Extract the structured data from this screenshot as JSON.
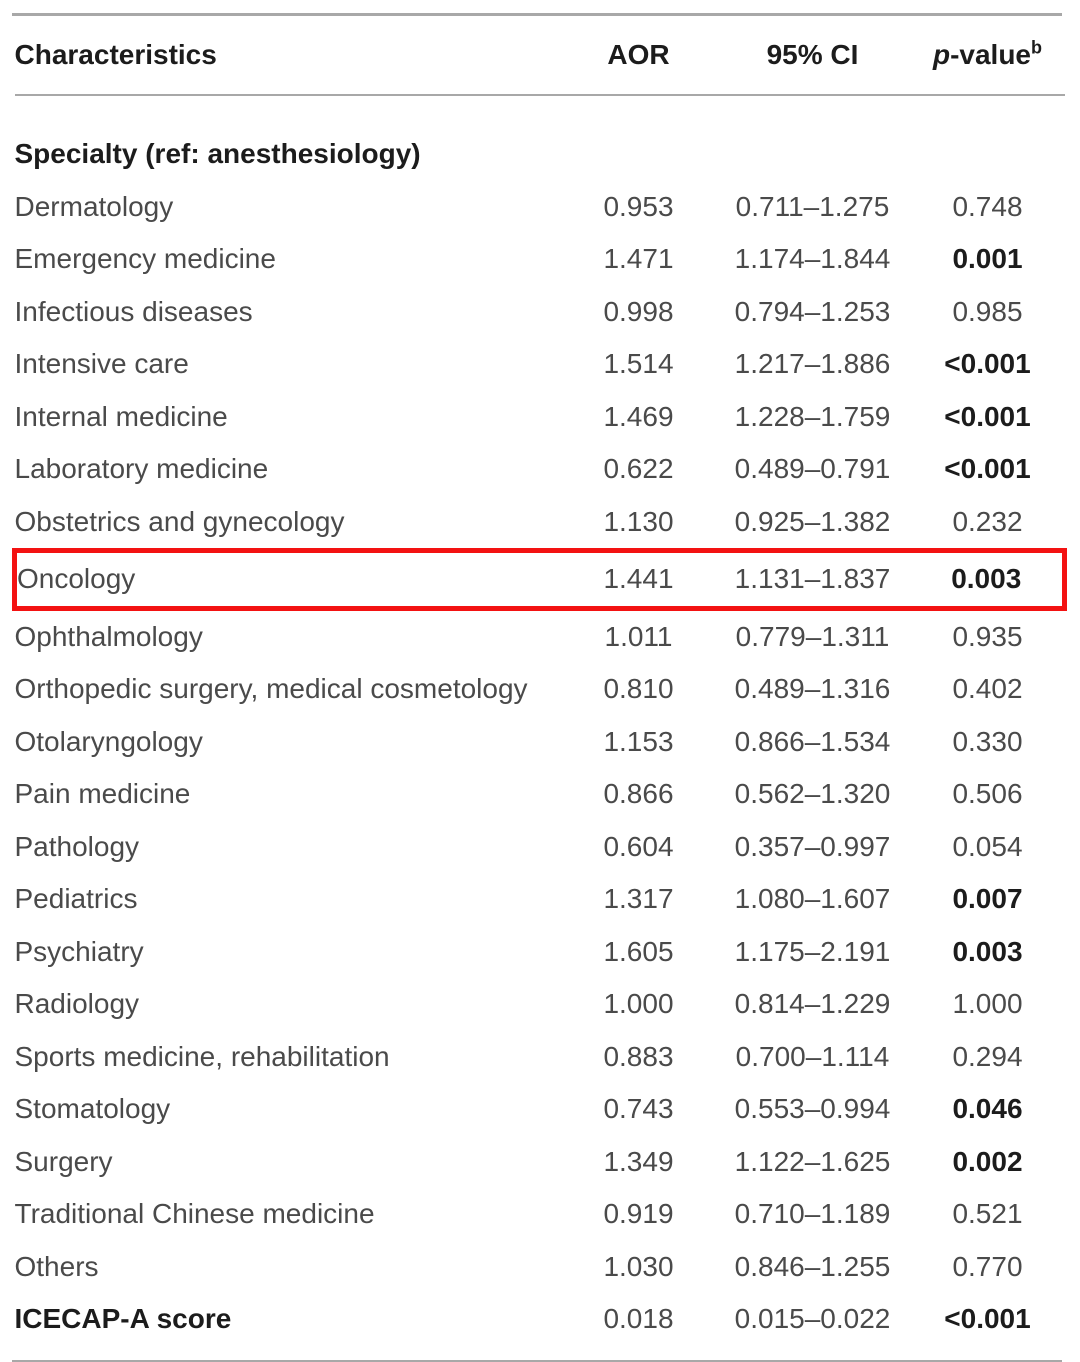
{
  "colors": {
    "background": "#ffffff",
    "text_regular": "#4a4a4a",
    "text_bold": "#1c1c1c",
    "rule": "#a8a8a8",
    "highlight": "#f31212"
  },
  "header": {
    "characteristics": "Characteristics",
    "aor": "AOR",
    "ci": "95% CI",
    "p_italic": "p",
    "p_rest": "-value",
    "p_sup": "b"
  },
  "table": {
    "section_header": "Specialty (ref: anesthesiology)",
    "highlighted_row": "Oncology",
    "rows": [
      {
        "label": "Dermatology",
        "aor": "0.953",
        "ci": "0.711–1.275",
        "p": "0.748",
        "p_bold": false,
        "bold_label": false,
        "highlighted": false
      },
      {
        "label": "Emergency medicine",
        "aor": "1.471",
        "ci": "1.174–1.844",
        "p": "0.001",
        "p_bold": true,
        "bold_label": false,
        "highlighted": false
      },
      {
        "label": "Infectious diseases",
        "aor": "0.998",
        "ci": "0.794–1.253",
        "p": "0.985",
        "p_bold": false,
        "bold_label": false,
        "highlighted": false
      },
      {
        "label": "Intensive care",
        "aor": "1.514",
        "ci": "1.217–1.886",
        "p": "<0.001",
        "p_bold": true,
        "bold_label": false,
        "highlighted": false
      },
      {
        "label": "Internal medicine",
        "aor": "1.469",
        "ci": "1.228–1.759",
        "p": "<0.001",
        "p_bold": true,
        "bold_label": false,
        "highlighted": false
      },
      {
        "label": "Laboratory medicine",
        "aor": "0.622",
        "ci": "0.489–0.791",
        "p": "<0.001",
        "p_bold": true,
        "bold_label": false,
        "highlighted": false
      },
      {
        "label": "Obstetrics and gynecology",
        "aor": "1.130",
        "ci": "0.925–1.382",
        "p": "0.232",
        "p_bold": false,
        "bold_label": false,
        "highlighted": false
      },
      {
        "label": "Oncology",
        "aor": "1.441",
        "ci": "1.131–1.837",
        "p": "0.003",
        "p_bold": true,
        "bold_label": false,
        "highlighted": true
      },
      {
        "label": "Ophthalmology",
        "aor": "1.011",
        "ci": "0.779–1.311",
        "p": "0.935",
        "p_bold": false,
        "bold_label": false,
        "highlighted": false
      },
      {
        "label": "Orthopedic surgery, medical cosmetology",
        "aor": "0.810",
        "ci": "0.489–1.316",
        "p": "0.402",
        "p_bold": false,
        "bold_label": false,
        "highlighted": false
      },
      {
        "label": "Otolaryngology",
        "aor": "1.153",
        "ci": "0.866–1.534",
        "p": "0.330",
        "p_bold": false,
        "bold_label": false,
        "highlighted": false
      },
      {
        "label": "Pain medicine",
        "aor": "0.866",
        "ci": "0.562–1.320",
        "p": "0.506",
        "p_bold": false,
        "bold_label": false,
        "highlighted": false
      },
      {
        "label": "Pathology",
        "aor": "0.604",
        "ci": "0.357–0.997",
        "p": "0.054",
        "p_bold": false,
        "bold_label": false,
        "highlighted": false
      },
      {
        "label": "Pediatrics",
        "aor": "1.317",
        "ci": "1.080–1.607",
        "p": "0.007",
        "p_bold": true,
        "bold_label": false,
        "highlighted": false
      },
      {
        "label": "Psychiatry",
        "aor": "1.605",
        "ci": "1.175–2.191",
        "p": "0.003",
        "p_bold": true,
        "bold_label": false,
        "highlighted": false
      },
      {
        "label": "Radiology",
        "aor": "1.000",
        "ci": "0.814–1.229",
        "p": "1.000",
        "p_bold": false,
        "bold_label": false,
        "highlighted": false
      },
      {
        "label": "Sports medicine, rehabilitation",
        "aor": "0.883",
        "ci": "0.700–1.114",
        "p": "0.294",
        "p_bold": false,
        "bold_label": false,
        "highlighted": false
      },
      {
        "label": "Stomatology",
        "aor": "0.743",
        "ci": "0.553–0.994",
        "p": "0.046",
        "p_bold": true,
        "bold_label": false,
        "highlighted": false
      },
      {
        "label": "Surgery",
        "aor": "1.349",
        "ci": "1.122–1.625",
        "p": "0.002",
        "p_bold": true,
        "bold_label": false,
        "highlighted": false
      },
      {
        "label": "Traditional Chinese medicine",
        "aor": "0.919",
        "ci": "0.710–1.189",
        "p": "0.521",
        "p_bold": false,
        "bold_label": false,
        "highlighted": false
      },
      {
        "label": "Others",
        "aor": "1.030",
        "ci": "0.846–1.255",
        "p": "0.770",
        "p_bold": false,
        "bold_label": false,
        "highlighted": false
      },
      {
        "label": "ICECAP-A score",
        "aor": "0.018",
        "ci": "0.015–0.022",
        "p": "<0.001",
        "p_bold": true,
        "bold_label": true,
        "highlighted": false
      }
    ]
  }
}
